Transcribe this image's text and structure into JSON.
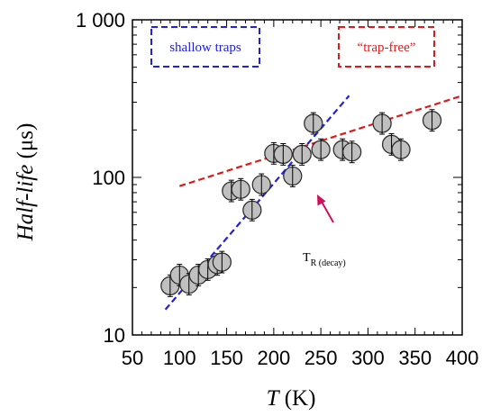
{
  "chart_data": {
    "type": "scatter",
    "xlabel": {
      "symbol": "T",
      "unit": " (K)"
    },
    "ylabel": {
      "main": "Half-life",
      "unit": " (μs)"
    },
    "xlim": [
      50,
      400
    ],
    "ylim": [
      10,
      1000
    ],
    "y_scale": "log",
    "x_ticks": [
      50,
      100,
      150,
      200,
      250,
      300,
      350,
      400
    ],
    "x_tick_labels": [
      "50",
      "100",
      "150",
      "200",
      "250",
      "300",
      "350",
      "400"
    ],
    "y_ticks": [
      10,
      100,
      1000
    ],
    "y_tick_labels": [
      "10",
      "100",
      "1 000"
    ],
    "points": [
      {
        "x": 90,
        "y": 20.5
      },
      {
        "x": 100,
        "y": 24
      },
      {
        "x": 110,
        "y": 21
      },
      {
        "x": 120,
        "y": 24
      },
      {
        "x": 130,
        "y": 26
      },
      {
        "x": 140,
        "y": 28
      },
      {
        "x": 145,
        "y": 29
      },
      {
        "x": 155,
        "y": 82
      },
      {
        "x": 165,
        "y": 84
      },
      {
        "x": 177,
        "y": 62
      },
      {
        "x": 187,
        "y": 90
      },
      {
        "x": 200,
        "y": 142
      },
      {
        "x": 210,
        "y": 140
      },
      {
        "x": 220,
        "y": 102
      },
      {
        "x": 230,
        "y": 140
      },
      {
        "x": 242,
        "y": 220
      },
      {
        "x": 250,
        "y": 150
      },
      {
        "x": 273,
        "y": 150
      },
      {
        "x": 283,
        "y": 145
      },
      {
        "x": 315,
        "y": 220
      },
      {
        "x": 325,
        "y": 162
      },
      {
        "x": 335,
        "y": 150
      },
      {
        "x": 368,
        "y": 230
      }
    ],
    "error_bar_factor": 1.17,
    "marker_color": "#c0c0c0",
    "fit_lines": [
      {
        "color": "#2020e0",
        "from": [
          85,
          14.5
        ],
        "to": [
          280,
          330
        ]
      },
      {
        "color": "#e01818",
        "from": [
          100,
          88
        ],
        "to": [
          400,
          330
        ]
      }
    ],
    "legend_boxes": [
      {
        "text": "shallow traps",
        "color": "#2020e0",
        "position": "top-left"
      },
      {
        "text": "“trap-free”",
        "color": "#e01818",
        "position": "top-right"
      }
    ],
    "annotation": {
      "main": "T",
      "subscript": "R (decay)",
      "arrow_color": "#d0105a"
    }
  }
}
